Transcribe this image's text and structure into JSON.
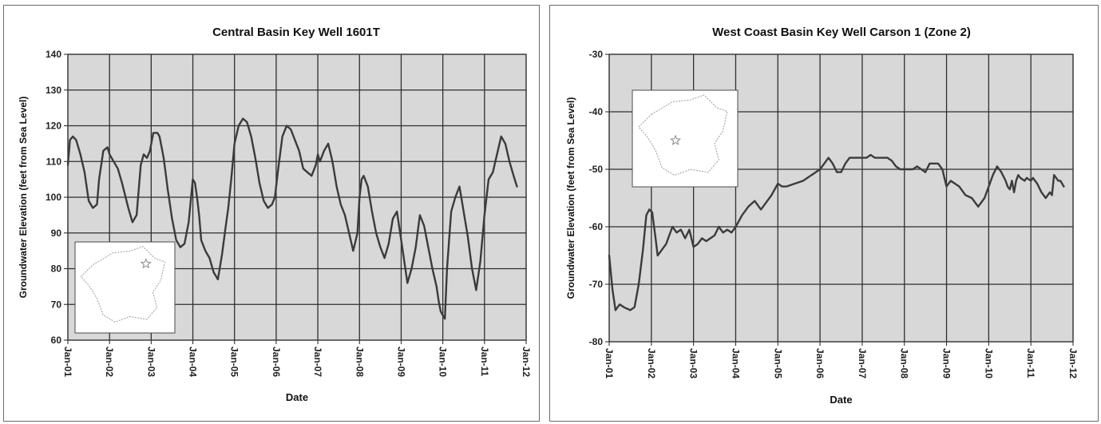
{
  "colors": {
    "line": "#3b3b3b",
    "grid": "#2f2f2f",
    "plot_bg": "#d8d8d8",
    "inset_border": "#4a4a4a"
  },
  "chart_data": [
    {
      "type": "line",
      "title": "Central Basin Key Well 1601T",
      "xlabel": "Date",
      "ylabel": "Groundwater Elevation (feet from Sea Level)",
      "xlim": [
        2001,
        2012
      ],
      "ylim": [
        60,
        140
      ],
      "y_ticks": [
        60,
        70,
        80,
        90,
        100,
        110,
        120,
        130,
        140
      ],
      "x_tick_labels": [
        "Jan-01",
        "Jan-02",
        "Jan-03",
        "Jan-04",
        "Jan-05",
        "Jan-06",
        "Jan-07",
        "Jan-08",
        "Jan-09",
        "Jan-10",
        "Jan-11",
        "Jan-12"
      ],
      "grid": true,
      "inset_map": "bottom-left",
      "series": [
        {
          "x": [
            2001.0,
            2001.05,
            2001.12,
            2001.2,
            2001.3,
            2001.4,
            2001.5,
            2001.6,
            2001.7,
            2001.75,
            2001.85,
            2001.95,
            2002.0,
            2002.05,
            2002.1,
            2002.2,
            2002.3,
            2002.45,
            2002.55,
            2002.65,
            2002.75,
            2002.82,
            2002.9,
            2002.97,
            2003.05,
            2003.15,
            2003.2,
            2003.3,
            2003.4,
            2003.5,
            2003.6,
            2003.7,
            2003.8,
            2003.9,
            2004.0,
            2004.05,
            2004.1,
            2004.15,
            2004.2,
            2004.3,
            2004.4,
            2004.5,
            2004.6,
            2004.7,
            2004.78,
            2004.85,
            2004.92,
            2005.0,
            2005.1,
            2005.2,
            2005.3,
            2005.4,
            2005.5,
            2005.6,
            2005.7,
            2005.8,
            2005.9,
            2005.97,
            2006.05,
            2006.15,
            2006.25,
            2006.35,
            2006.45,
            2006.55,
            2006.65,
            2006.75,
            2006.85,
            2006.95,
            2007.0,
            2007.05,
            2007.15,
            2007.25,
            2007.35,
            2007.45,
            2007.55,
            2007.65,
            2007.75,
            2007.85,
            2007.95,
            2008.0,
            2008.05,
            2008.1,
            2008.2,
            2008.3,
            2008.4,
            2008.5,
            2008.6,
            2008.7,
            2008.8,
            2008.9,
            2008.95,
            2009.0,
            2009.05,
            2009.1,
            2009.15,
            2009.25,
            2009.35,
            2009.45,
            2009.55,
            2009.65,
            2009.75,
            2009.85,
            2009.9,
            2009.95,
            2010.0,
            2010.05,
            2010.1,
            2010.2,
            2010.3,
            2010.4,
            2010.5,
            2010.6,
            2010.7,
            2010.8,
            2010.9,
            2011.0,
            2011.1,
            2011.2,
            2011.3,
            2011.4,
            2011.5,
            2011.6,
            2011.7,
            2011.78
          ],
          "y": [
            109,
            116,
            117,
            116,
            112,
            107,
            99,
            97,
            98,
            105,
            113,
            114,
            112,
            111,
            110,
            108,
            104,
            97,
            93,
            95,
            109,
            112,
            111,
            113,
            118,
            118,
            117,
            111,
            102,
            94,
            88,
            86,
            87,
            93,
            105,
            104,
            100,
            95,
            88,
            85,
            83,
            79,
            77,
            84,
            91,
            97,
            105,
            115,
            120,
            122,
            121,
            117,
            111,
            104,
            99,
            97,
            98,
            100,
            108,
            117,
            120,
            119,
            116,
            113,
            108,
            107,
            106,
            109,
            112,
            110,
            113,
            115,
            110,
            103,
            98,
            95,
            90,
            85,
            90,
            100,
            105,
            106,
            103,
            96,
            90,
            86,
            83,
            87,
            94,
            96,
            92,
            88,
            84,
            80,
            76,
            80,
            86,
            95,
            92,
            86,
            80,
            75,
            71,
            68,
            67,
            66,
            80,
            96,
            100,
            103,
            96,
            89,
            80,
            74,
            82,
            95,
            105,
            107,
            112,
            117,
            115,
            110,
            106,
            103
          ]
        }
      ]
    },
    {
      "type": "line",
      "title": "West Coast Basin Key Well Carson 1 (Zone 2)",
      "xlabel": "Date",
      "ylabel": "Groundwater Elevation (feet from Sea Level)",
      "xlim": [
        2001,
        2012
      ],
      "ylim": [
        -80,
        -30
      ],
      "y_ticks": [
        -80,
        -70,
        -60,
        -50,
        -40,
        -30
      ],
      "x_tick_labels": [
        "Jan-01",
        "Jan-02",
        "Jan-03",
        "Jan-04",
        "Jan-05",
        "Jan-06",
        "Jan-07",
        "Jan-08",
        "Jan-09",
        "Jan-10",
        "Jan-11",
        "Jan-12"
      ],
      "grid": true,
      "inset_map": "top-left",
      "series": [
        {
          "x": [
            2001.0,
            2001.08,
            2001.15,
            2001.25,
            2001.35,
            2001.5,
            2001.6,
            2001.7,
            2001.8,
            2001.88,
            2001.95,
            2002.02,
            2002.1,
            2002.15,
            2002.25,
            2002.35,
            2002.5,
            2002.6,
            2002.7,
            2002.8,
            2002.9,
            2003.0,
            2003.1,
            2003.2,
            2003.3,
            2003.4,
            2003.5,
            2003.6,
            2003.7,
            2003.8,
            2003.9,
            2004.0,
            2004.15,
            2004.3,
            2004.45,
            2004.6,
            2004.7,
            2004.85,
            2005.0,
            2005.1,
            2005.2,
            2005.4,
            2005.6,
            2005.8,
            2006.0,
            2006.1,
            2006.2,
            2006.3,
            2006.4,
            2006.5,
            2006.6,
            2006.7,
            2006.8,
            2006.9,
            2007.0,
            2007.1,
            2007.2,
            2007.3,
            2007.4,
            2007.5,
            2007.6,
            2007.7,
            2007.8,
            2007.9,
            2008.0,
            2008.1,
            2008.2,
            2008.3,
            2008.4,
            2008.5,
            2008.6,
            2008.7,
            2008.8,
            2008.9,
            2009.0,
            2009.1,
            2009.2,
            2009.3,
            2009.45,
            2009.6,
            2009.75,
            2009.9,
            2010.0,
            2010.1,
            2010.2,
            2010.3,
            2010.4,
            2010.45,
            2010.5,
            2010.55,
            2010.6,
            2010.65,
            2010.7,
            2010.75,
            2010.85,
            2010.9,
            2011.0,
            2011.05,
            2011.15,
            2011.25,
            2011.35,
            2011.45,
            2011.5,
            2011.55,
            2011.65,
            2011.7,
            2011.78
          ],
          "y": [
            -65,
            -71,
            -74.5,
            -73.5,
            -74,
            -74.5,
            -74,
            -70,
            -64,
            -58,
            -57,
            -57.5,
            -62,
            -65,
            -64,
            -63,
            -60,
            -61,
            -60.5,
            -62,
            -60.5,
            -63.5,
            -63,
            -62,
            -62.5,
            -62,
            -61.5,
            -60,
            -61,
            -60.5,
            -61,
            -60,
            -58,
            -56.5,
            -55.5,
            -57,
            -56,
            -54.5,
            -52.5,
            -53,
            -53,
            -52.5,
            -52,
            -51,
            -50,
            -49,
            -48,
            -49,
            -50.5,
            -50.5,
            -49,
            -48,
            -48,
            -48,
            -48,
            -48,
            -47.5,
            -48,
            -48,
            -48,
            -48,
            -48.5,
            -49.5,
            -50,
            -50,
            -50,
            -50,
            -49.5,
            -50,
            -50.5,
            -49,
            -49,
            -49,
            -50,
            -53,
            -52,
            -52.5,
            -53,
            -54.5,
            -55,
            -56.5,
            -55,
            -53,
            -51,
            -49.5,
            -50.5,
            -52,
            -53,
            -53.5,
            -52,
            -54,
            -52,
            -51,
            -51.5,
            -52,
            -51.5,
            -52,
            -51.5,
            -52.5,
            -54,
            -55,
            -54,
            -54.5,
            -51,
            -52,
            -52,
            -53
          ]
        }
      ]
    }
  ]
}
